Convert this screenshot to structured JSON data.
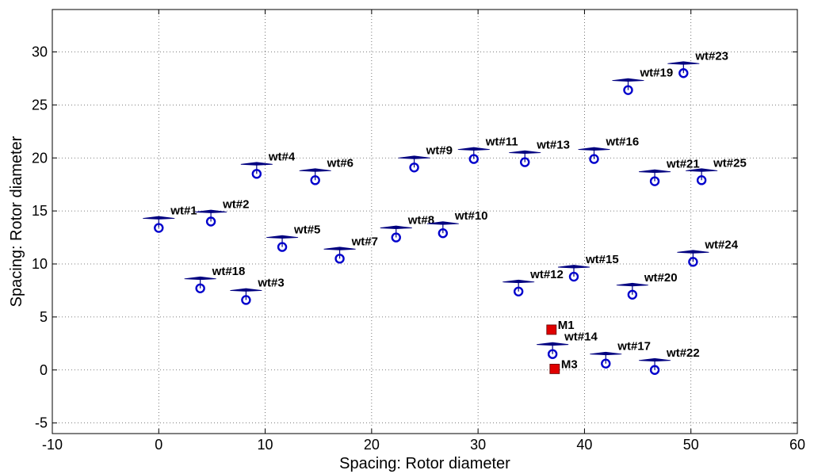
{
  "chart_data": {
    "type": "scatter",
    "title": "",
    "xlabel": "Spacing: Rotor diameter",
    "ylabel": "Spacing: Rotor diameter",
    "xlim": [
      -10,
      60
    ],
    "ylim": [
      -6,
      34
    ],
    "xticks": [
      -10,
      0,
      10,
      20,
      30,
      40,
      50,
      60
    ],
    "yticks": [
      -5,
      0,
      5,
      10,
      15,
      20,
      25,
      30
    ],
    "grid": true,
    "colors": {
      "turbine": "#0000cc",
      "rotor_line": "#000080",
      "mast": "#e00000"
    },
    "turbines": [
      {
        "label": "wt#1",
        "x": 0.0,
        "y": 13.4
      },
      {
        "label": "wt#2",
        "x": 4.9,
        "y": 14.0
      },
      {
        "label": "wt#3",
        "x": 8.2,
        "y": 6.6
      },
      {
        "label": "wt#4",
        "x": 9.2,
        "y": 18.5
      },
      {
        "label": "wt#5",
        "x": 11.6,
        "y": 11.6
      },
      {
        "label": "wt#6",
        "x": 14.7,
        "y": 17.9
      },
      {
        "label": "wt#7",
        "x": 17.0,
        "y": 10.5
      },
      {
        "label": "wt#8",
        "x": 22.3,
        "y": 12.5
      },
      {
        "label": "wt#9",
        "x": 24.0,
        "y": 19.1
      },
      {
        "label": "wt#10",
        "x": 26.7,
        "y": 12.9
      },
      {
        "label": "wt#11",
        "x": 29.6,
        "y": 19.9
      },
      {
        "label": "wt#12",
        "x": 33.8,
        "y": 7.4
      },
      {
        "label": "wt#13",
        "x": 34.4,
        "y": 19.6
      },
      {
        "label": "wt#14",
        "x": 37.0,
        "y": 1.5
      },
      {
        "label": "wt#15",
        "x": 39.0,
        "y": 8.8
      },
      {
        "label": "wt#16",
        "x": 40.9,
        "y": 19.9
      },
      {
        "label": "wt#17",
        "x": 42.0,
        "y": 0.6
      },
      {
        "label": "wt#18",
        "x": 3.9,
        "y": 7.7
      },
      {
        "label": "wt#19",
        "x": 44.1,
        "y": 26.4
      },
      {
        "label": "wt#20",
        "x": 44.5,
        "y": 7.1
      },
      {
        "label": "wt#21",
        "x": 46.6,
        "y": 17.8
      },
      {
        "label": "wt#22",
        "x": 46.6,
        "y": 0.0
      },
      {
        "label": "wt#23",
        "x": 49.3,
        "y": 28.0
      },
      {
        "label": "wt#24",
        "x": 50.2,
        "y": 10.2
      },
      {
        "label": "wt#25",
        "x": 51.0,
        "y": 17.9
      }
    ],
    "masts": [
      {
        "label": "M1",
        "x": 36.9,
        "y": 3.8
      },
      {
        "label": "M3",
        "x": 37.2,
        "y": 0.1
      }
    ]
  }
}
